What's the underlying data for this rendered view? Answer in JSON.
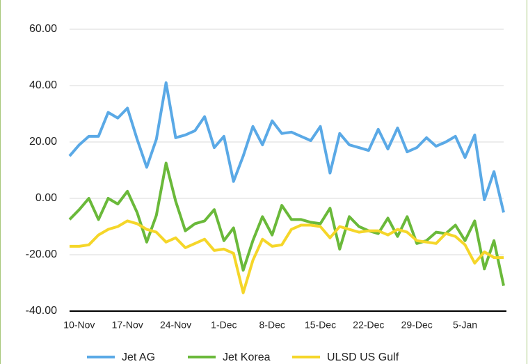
{
  "chart_data": {
    "type": "line",
    "categories": [
      null,
      "10-Nov",
      null,
      null,
      null,
      null,
      "17-Nov",
      null,
      null,
      null,
      null,
      "24-Nov",
      null,
      null,
      null,
      null,
      "1-Dec",
      null,
      null,
      null,
      null,
      "8-Dec",
      null,
      null,
      null,
      null,
      "15-Dec",
      null,
      null,
      null,
      null,
      "22-Dec",
      null,
      null,
      null,
      null,
      "29-Dec",
      null,
      null,
      null,
      null,
      "5-Jan",
      null,
      null,
      null,
      null
    ],
    "series": [
      {
        "name": "Jet AG",
        "color": "#5aa9e6",
        "values": [
          15,
          19,
          22,
          22,
          30.5,
          28.5,
          32,
          21,
          11,
          21,
          41,
          21.5,
          22.5,
          24,
          29,
          18,
          22,
          6,
          15,
          25.5,
          19,
          27.5,
          23,
          23.5,
          22,
          20.5,
          25.5,
          9,
          23,
          19,
          18,
          17,
          24.5,
          17.5,
          25,
          16.5,
          18,
          21.5,
          18.5,
          20,
          22,
          14.5,
          22.5,
          -0.5,
          9.5,
          -5
        ]
      },
      {
        "name": "Jet Korea",
        "color": "#6ab93a",
        "values": [
          -7.5,
          -4,
          0,
          -7.5,
          0,
          -2,
          2.5,
          -5,
          -15.5,
          -6,
          12.5,
          -1,
          -11.5,
          -9,
          -8,
          -4,
          -15,
          -10.5,
          -25.5,
          -15,
          -6.5,
          -13,
          -2.5,
          -7.5,
          -7.5,
          -8.5,
          -9,
          -3.5,
          -18,
          -6.5,
          -10,
          -11.5,
          -12.5,
          -7,
          -13.5,
          -6.5,
          -16,
          -15,
          -12,
          -12.5,
          -9.5,
          -15,
          -8,
          -25,
          -15,
          -31
        ]
      },
      {
        "name": "ULSD US Gulf",
        "color": "#f5d629",
        "values": [
          -17,
          -17,
          -16.5,
          -13,
          -11,
          -10,
          -8,
          -9,
          -11,
          -12,
          -15.5,
          -14,
          -17.5,
          -16,
          -14.5,
          -18.5,
          -18,
          -19.5,
          -33.5,
          -22,
          -14.5,
          -17,
          -16.5,
          -11,
          -9.5,
          -9.5,
          -10,
          -14,
          -10,
          -11,
          -12,
          -11.5,
          -11.5,
          -13,
          -11,
          -12,
          -15,
          -15.5,
          -16,
          -12.5,
          -13.5,
          -16.5,
          -23,
          -19,
          -21,
          -21
        ]
      }
    ],
    "ylim": [
      -40,
      60
    ],
    "yticks": [
      {
        "value": -40,
        "label": "-40.00"
      },
      {
        "value": -20,
        "label": "-20.00"
      },
      {
        "value": 0,
        "label": "0.00"
      },
      {
        "value": 20,
        "label": "20.00"
      },
      {
        "value": 40,
        "label": "40.00"
      },
      {
        "value": 60,
        "label": "60.00"
      }
    ],
    "grid": true
  }
}
